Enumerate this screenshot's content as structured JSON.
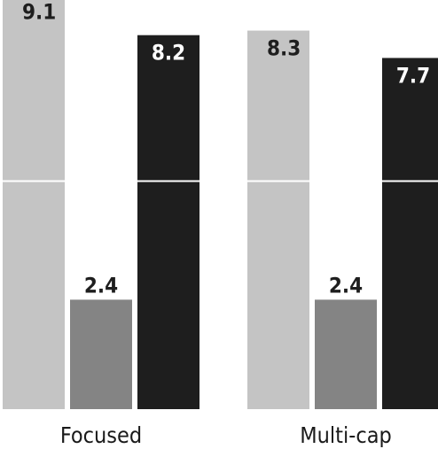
{
  "chart_data": {
    "type": "bar",
    "categories": [
      "Focused",
      "Multi-cap"
    ],
    "series": [
      {
        "color": "#c4c4c4",
        "values": [
          9.1,
          8.3
        ]
      },
      {
        "color": "#848484",
        "values": [
          2.4,
          2.4
        ]
      },
      {
        "color": "#1e1e1e",
        "values": [
          8.2,
          7.7
        ]
      }
    ],
    "title": "",
    "xlabel": "",
    "ylabel": "",
    "ylim": [
      0,
      10
    ],
    "reference_line": 5,
    "grid": false,
    "value_labels": true,
    "text_colors": {
      "on_light": "#1e1e1e",
      "on_dark": "#ffffff"
    },
    "line_color": "#ffffff"
  }
}
